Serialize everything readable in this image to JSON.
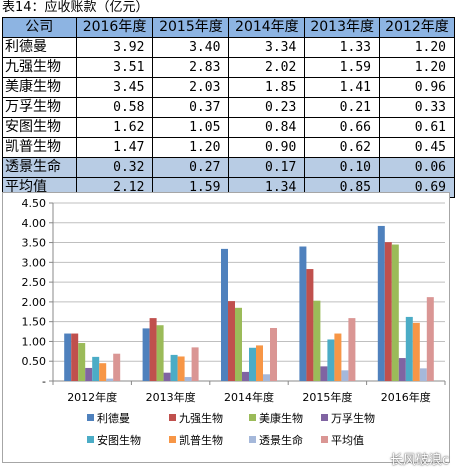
{
  "caption": "表14：应收账款（亿元）",
  "table": {
    "headers": [
      "公司",
      "2016年度",
      "2015年度",
      "2014年度",
      "2013年度",
      "2012年度"
    ],
    "rows": [
      {
        "name": "利德曼",
        "values": [
          "3.92",
          "3.40",
          "3.34",
          "1.33",
          "1.20"
        ],
        "highlight": false
      },
      {
        "name": "九强生物",
        "values": [
          "3.51",
          "2.83",
          "2.02",
          "1.59",
          "1.20"
        ],
        "highlight": false
      },
      {
        "name": "美康生物",
        "values": [
          "3.45",
          "2.03",
          "1.85",
          "1.41",
          "0.96"
        ],
        "highlight": false
      },
      {
        "name": "万孚生物",
        "values": [
          "0.58",
          "0.37",
          "0.23",
          "0.21",
          "0.33"
        ],
        "highlight": false
      },
      {
        "name": "安图生物",
        "values": [
          "1.62",
          "1.05",
          "0.84",
          "0.66",
          "0.61"
        ],
        "highlight": false
      },
      {
        "name": "凯普生物",
        "values": [
          "1.47",
          "1.20",
          "0.90",
          "0.62",
          "0.45"
        ],
        "highlight": false
      },
      {
        "name": "透景生命",
        "values": [
          "0.32",
          "0.27",
          "0.17",
          "0.10",
          "0.06"
        ],
        "highlight": true
      },
      {
        "name": "平均值",
        "values": [
          "2.12",
          "1.59",
          "1.34",
          "0.85",
          "0.69"
        ],
        "highlight": true
      }
    ]
  },
  "chart_data": {
    "type": "bar",
    "categories": [
      "2012年度",
      "2013年度",
      "2014年度",
      "2015年度",
      "2016年度"
    ],
    "series": [
      {
        "name": "利德曼",
        "color": "#4f81bd",
        "values": [
          1.2,
          1.33,
          3.34,
          3.4,
          3.92
        ]
      },
      {
        "name": "九强生物",
        "color": "#c0504d",
        "values": [
          1.2,
          1.59,
          2.02,
          2.83,
          3.51
        ]
      },
      {
        "name": "美康生物",
        "color": "#9bbb59",
        "values": [
          0.96,
          1.41,
          1.85,
          2.03,
          3.45
        ]
      },
      {
        "name": "万孚生物",
        "color": "#8064a2",
        "values": [
          0.33,
          0.21,
          0.23,
          0.37,
          0.58
        ]
      },
      {
        "name": "安图生物",
        "color": "#4bacc6",
        "values": [
          0.61,
          0.66,
          0.84,
          1.05,
          1.62
        ]
      },
      {
        "name": "凯普生物",
        "color": "#f79646",
        "values": [
          0.45,
          0.62,
          0.9,
          1.2,
          1.47
        ]
      },
      {
        "name": "透景生命",
        "color": "#a5b8da",
        "values": [
          0.06,
          0.1,
          0.17,
          0.27,
          0.32
        ]
      },
      {
        "name": "平均值",
        "color": "#da9694",
        "values": [
          0.69,
          0.85,
          1.34,
          1.59,
          2.12
        ]
      }
    ],
    "ylim": [
      0,
      4.5
    ],
    "yticks": [
      "-",
      "0.50",
      "1.00",
      "1.50",
      "2.00",
      "2.50",
      "3.00",
      "3.50",
      "4.00",
      "4.50"
    ],
    "grid": true,
    "legend": "bottom",
    "title": "",
    "xlabel": "",
    "ylabel": ""
  },
  "watermark": "长风破浪c"
}
